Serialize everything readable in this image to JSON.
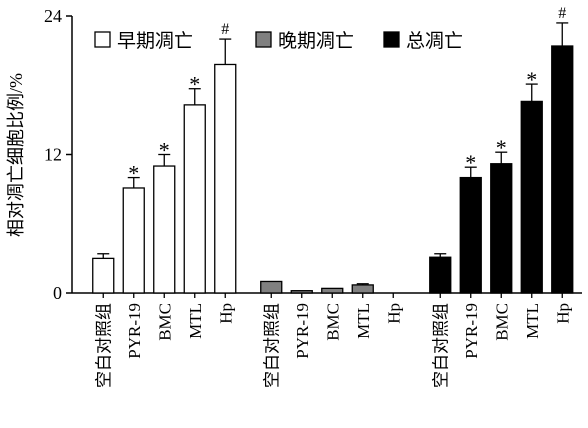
{
  "chart_data": {
    "type": "bar",
    "ylabel": "相对凋亡细胞比例/%",
    "ylim": [
      0,
      24
    ],
    "yticks": [
      "0",
      "12",
      "24"
    ],
    "categories": [
      "空白对照组",
      "PYR-19",
      "BMC",
      "MTL",
      "Hp"
    ],
    "legend_position": "top",
    "series": [
      {
        "name": "早期凋亡",
        "color": "#ffffff",
        "values": [
          3.0,
          9.1,
          11.0,
          16.3,
          19.8
        ],
        "errors": [
          0.4,
          0.9,
          1.0,
          1.4,
          2.2
        ],
        "marks": [
          "",
          "*",
          "*",
          "*",
          "#"
        ]
      },
      {
        "name": "晚期凋亡",
        "color": "#808080",
        "values": [
          1.0,
          0.2,
          0.4,
          0.7,
          0.0
        ],
        "errors": [
          0.0,
          0.0,
          0.0,
          0.1,
          0.0
        ],
        "marks": [
          "",
          "",
          "",
          "",
          ""
        ]
      },
      {
        "name": "总凋亡",
        "color": "#000000",
        "values": [
          3.1,
          10.0,
          11.2,
          16.6,
          21.4
        ],
        "errors": [
          0.3,
          0.9,
          1.0,
          1.5,
          2.0
        ],
        "marks": [
          "",
          "*",
          "*",
          "*",
          "#"
        ]
      }
    ]
  }
}
